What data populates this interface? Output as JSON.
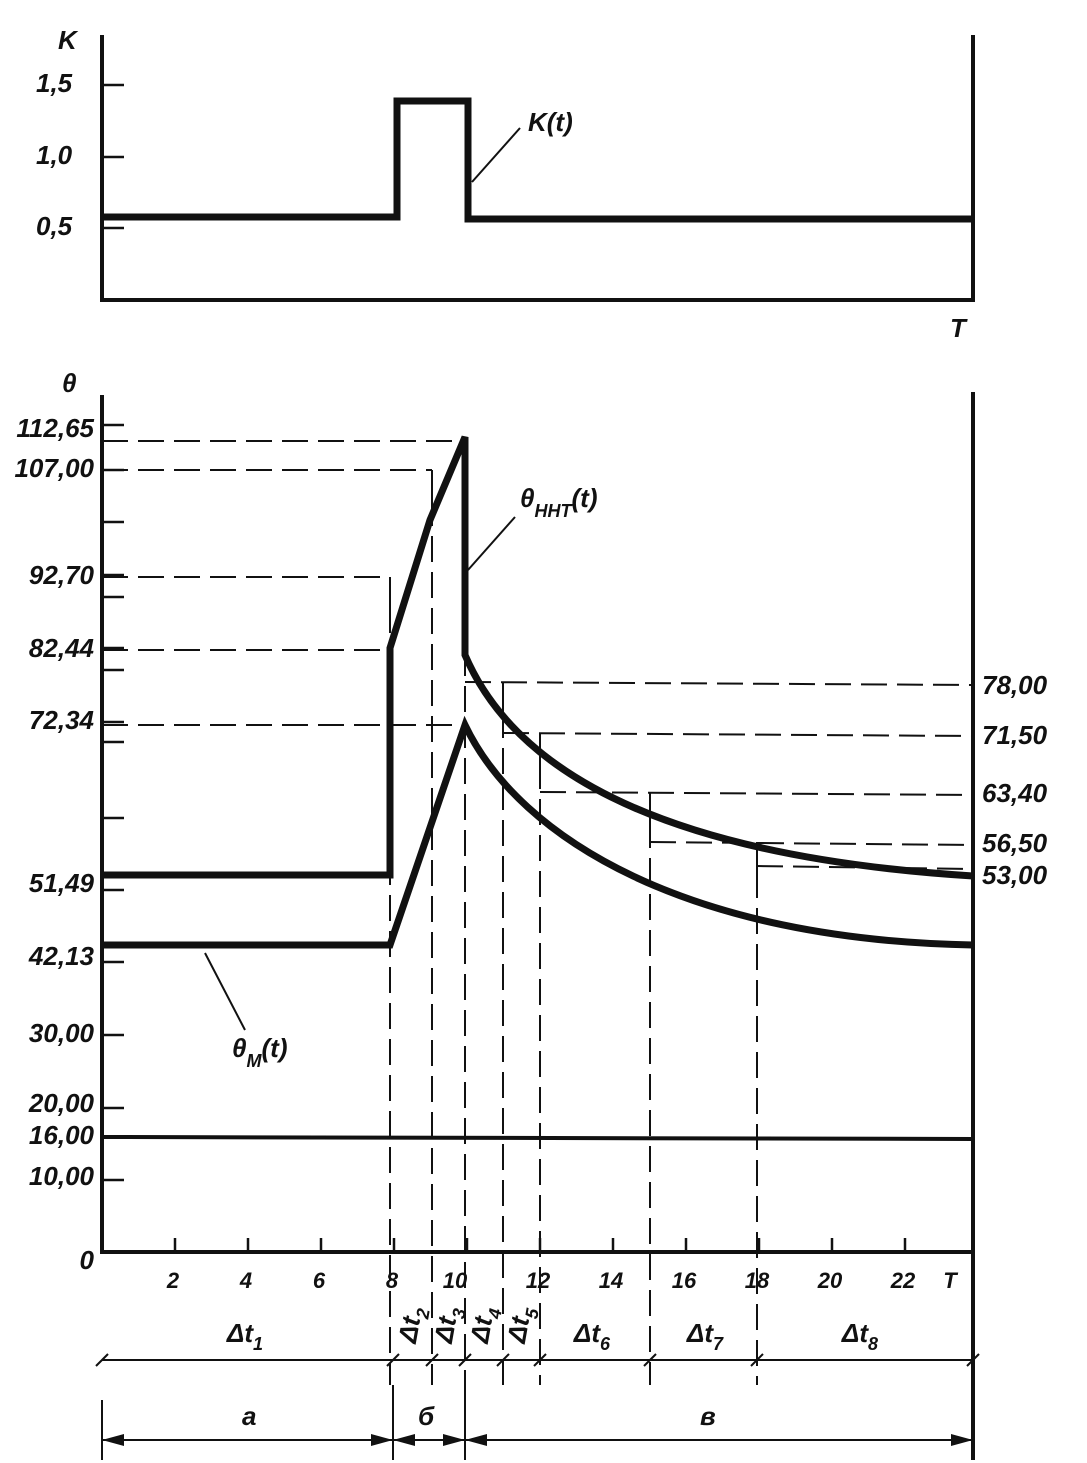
{
  "top": {
    "y_axis_label": "K",
    "y_ticks": [
      "1,5",
      "1,0",
      "0,5"
    ],
    "curve_label": "K(t)",
    "x_axis_label": "T"
  },
  "bottom": {
    "y_axis_label": "θ",
    "y_ticks_left": [
      "112,65",
      "107,00",
      "92,70",
      "82,44",
      "72,34",
      "51,49",
      "42,13",
      "30,00",
      "20,00",
      "16,00",
      "10,00",
      "0"
    ],
    "y_ticks_right": [
      "78,00",
      "71,50",
      "63,40",
      "56,50",
      "53,00"
    ],
    "x_ticks": [
      "2",
      "4",
      "6",
      "8",
      "10",
      "12",
      "14",
      "16",
      "18",
      "20",
      "22",
      "T"
    ],
    "curve_upper": {
      "symbol": "θ",
      "subscript": "ННТ",
      "suffix": "(t)"
    },
    "curve_lower": {
      "symbol": "θ",
      "subscript": "М",
      "suffix": "(t)"
    },
    "intervals": [
      {
        "main": "Δt",
        "sub": "1"
      },
      {
        "main": "Δt",
        "sub": "2"
      },
      {
        "main": "Δt",
        "sub": "3"
      },
      {
        "main": "Δt",
        "sub": "4"
      },
      {
        "main": "Δt",
        "sub": "5"
      },
      {
        "main": "Δt",
        "sub": "6"
      },
      {
        "main": "Δt",
        "sub": "7"
      },
      {
        "main": "Δt",
        "sub": "8"
      }
    ],
    "phases": [
      "а",
      "б",
      "в"
    ]
  }
}
